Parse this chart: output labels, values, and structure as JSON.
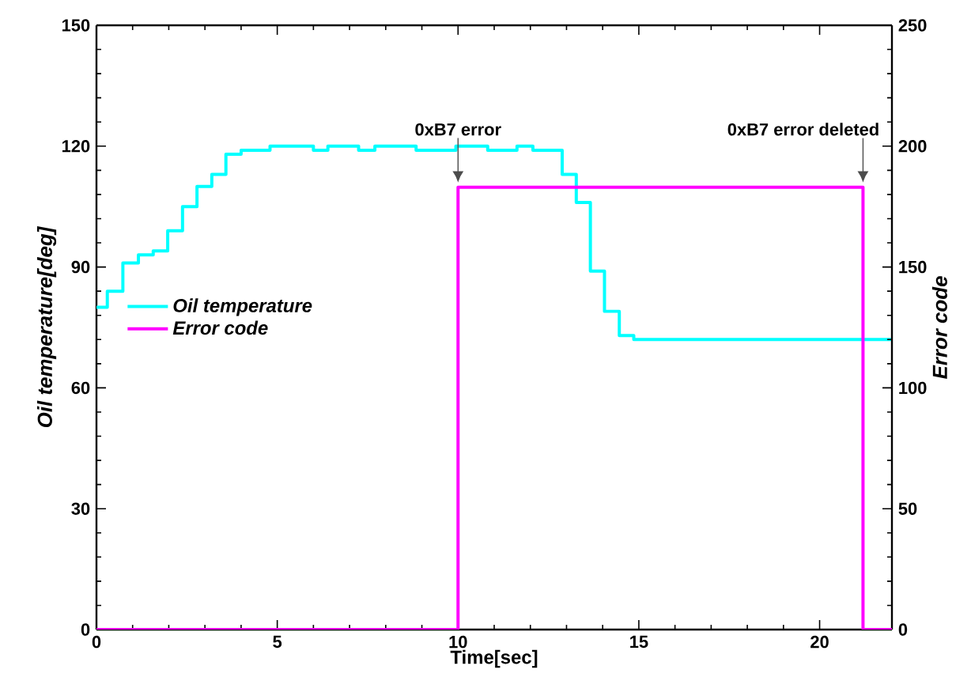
{
  "chart_data": {
    "type": "step",
    "xlabel": "Time[sec]",
    "ylabel": "Oil temperature[deg]",
    "y2label": "Error code",
    "xlim": [
      0,
      22
    ],
    "xticks": [
      0,
      5,
      10,
      15,
      20
    ],
    "ylim": [
      0,
      150
    ],
    "yticks": [
      0,
      30,
      60,
      90,
      120,
      150
    ],
    "y2lim": [
      0,
      250
    ],
    "y2ticks": [
      0,
      50,
      100,
      150,
      200,
      250
    ],
    "legend": "left",
    "grid": false,
    "marker": "none",
    "line_style": "solid",
    "series": [
      {
        "name": "Oil temperature",
        "color": "#00ffff",
        "x": [
          0,
          0.3,
          0.73,
          1.16,
          1.57,
          1.97,
          2.38,
          2.78,
          3.19,
          3.58,
          4.0,
          4.8,
          6.0,
          6.4,
          7.25,
          7.7,
          8.84,
          9.94,
          10.82,
          11.63,
          12.07,
          12.88,
          13.27,
          13.66,
          14.05,
          14.46,
          14.86,
          22
        ],
        "values": [
          80,
          84,
          91,
          93,
          94,
          99,
          105,
          110,
          113,
          118,
          119,
          120,
          119,
          120,
          119,
          120,
          119,
          120,
          119,
          120,
          119,
          113,
          106,
          89,
          79,
          73,
          72,
          72
        ]
      },
      {
        "name": "Error code",
        "color": "#ff00ff",
        "axis": "y2",
        "x": [
          0,
          10,
          21.2,
          22
        ],
        "values": [
          0,
          183,
          0,
          0
        ]
      }
    ],
    "annotations": [
      {
        "text": "0xB7 error",
        "x": 10,
        "y": 110
      },
      {
        "text": "0xB7 error deleted",
        "x": 21.2,
        "y": 110
      }
    ]
  }
}
